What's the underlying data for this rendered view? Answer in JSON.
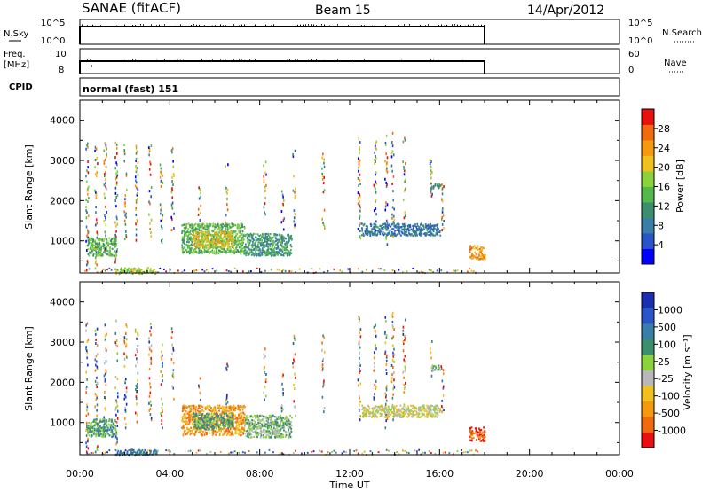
{
  "header": {
    "station": "SANAE (fitACF)",
    "beam": "Beam 15",
    "date": "14/Apr/2012"
  },
  "strip_noise": {
    "left_label": "N.Sky",
    "left_ticks": [
      "10^5",
      "10^0"
    ],
    "right_label": "N.Search",
    "right_ticks": [
      "10^5",
      "10^0"
    ]
  },
  "strip_freq": {
    "left_label_line1": "Freq.",
    "left_label_line2": "[MHz]",
    "left_ticks": [
      "10",
      "8"
    ],
    "right_label": "Nave",
    "right_ticks": [
      "60",
      "0"
    ]
  },
  "strip_cpid": {
    "label": "CPID",
    "value": "normal (fast) 151"
  },
  "time_axis": {
    "title": "Time UT",
    "ticks": [
      "00:00",
      "04:00",
      "08:00",
      "12:00",
      "16:00",
      "20:00",
      "00:00"
    ]
  },
  "colors": {
    "power": [
      "#0000ff",
      "#2a55c8",
      "#3a7ea8",
      "#3c8f6c",
      "#55b84c",
      "#8cd23c",
      "#f0c020",
      "#f59a10",
      "#f06a10",
      "#e81010"
    ],
    "velocity": [
      "#e81010",
      "#f06a10",
      "#f59a10",
      "#f0c020",
      "#b8b8b8",
      "#8cd23c",
      "#3c8f6c",
      "#3a7ea8",
      "#2a55c8",
      "#1a2fb0"
    ]
  },
  "chart_data": [
    {
      "type": "heatmap",
      "name": "power",
      "ylabel": "Slant Range [km]",
      "xlabel": "Time UT",
      "x_range": [
        0,
        24
      ],
      "y_range": [
        200,
        4500
      ],
      "y_ticks": [
        "4000",
        "3000",
        "2000",
        "1000"
      ],
      "colorbar_title": "Power [dB]",
      "colorbar_ticks": [
        "28",
        "24",
        "20",
        "16",
        "12",
        "8",
        "4"
      ],
      "colorbar_range": [
        0,
        32
      ],
      "scatter_lines": [
        {
          "t": 0.3,
          "r0": 300,
          "r1": 3500
        },
        {
          "t": 0.7,
          "r0": 300,
          "r1": 3400
        },
        {
          "t": 1.1,
          "r0": 800,
          "r1": 3500
        },
        {
          "t": 1.6,
          "r0": 500,
          "r1": 3600
        },
        {
          "t": 2.0,
          "r0": 900,
          "r1": 3500
        },
        {
          "t": 2.5,
          "r0": 1000,
          "r1": 3400
        },
        {
          "t": 3.1,
          "r0": 1100,
          "r1": 3500
        },
        {
          "t": 3.6,
          "r0": 900,
          "r1": 3000
        },
        {
          "t": 4.1,
          "r0": 1300,
          "r1": 3400
        },
        {
          "t": 5.3,
          "r0": 1500,
          "r1": 2400
        },
        {
          "t": 6.5,
          "r0": 1400,
          "r1": 3000
        },
        {
          "t": 8.2,
          "r0": 1600,
          "r1": 3100
        },
        {
          "t": 9.0,
          "r0": 1000,
          "r1": 2300
        },
        {
          "t": 9.5,
          "r0": 1200,
          "r1": 3300
        },
        {
          "t": 10.8,
          "r0": 1300,
          "r1": 3200
        },
        {
          "t": 12.4,
          "r0": 1100,
          "r1": 3700
        },
        {
          "t": 13.1,
          "r0": 1200,
          "r1": 3500
        },
        {
          "t": 13.6,
          "r0": 900,
          "r1": 3700
        },
        {
          "t": 13.9,
          "r0": 1100,
          "r1": 3800
        },
        {
          "t": 14.4,
          "r0": 1200,
          "r1": 3600
        },
        {
          "t": 15.6,
          "r0": 2100,
          "r1": 3100
        },
        {
          "t": 16.1,
          "r0": 1300,
          "r1": 2500
        }
      ],
      "blobs": [
        {
          "t0": 0.3,
          "t1": 1.6,
          "r0": 650,
          "r1": 1100,
          "level": 4
        },
        {
          "t0": 1.5,
          "t1": 3.4,
          "r0": 200,
          "r1": 350,
          "level": 5
        },
        {
          "t0": 4.5,
          "t1": 7.3,
          "r0": 700,
          "r1": 1450,
          "level": 4
        },
        {
          "t0": 5.0,
          "t1": 6.8,
          "r0": 850,
          "r1": 1250,
          "level": 6
        },
        {
          "t0": 7.3,
          "t1": 9.4,
          "r0": 650,
          "r1": 1200,
          "level": 3
        },
        {
          "t0": 12.5,
          "t1": 16.0,
          "r0": 1150,
          "r1": 1450,
          "level": 2
        },
        {
          "t0": 15.6,
          "t1": 16.0,
          "r0": 2300,
          "r1": 2450,
          "level": 3
        },
        {
          "t0": 17.3,
          "t1": 18.0,
          "r0": 550,
          "r1": 900,
          "level": 7
        }
      ]
    },
    {
      "type": "heatmap",
      "name": "velocity",
      "ylabel": "Slant Range [km]",
      "xlabel": "Time UT",
      "x_range": [
        0,
        24
      ],
      "y_range": [
        200,
        4500
      ],
      "y_ticks": [
        "4000",
        "3000",
        "2000",
        "1000"
      ],
      "colorbar_title": "Velocity [m s⁻¹]",
      "colorbar_ticks": [
        "1000",
        "500",
        "100",
        "25",
        "-25",
        "-100",
        "-500",
        "-1000"
      ],
      "scatter_lines": [
        {
          "t": 0.3,
          "r0": 300,
          "r1": 3500
        },
        {
          "t": 0.7,
          "r0": 300,
          "r1": 3400
        },
        {
          "t": 1.1,
          "r0": 800,
          "r1": 3500
        },
        {
          "t": 1.6,
          "r0": 500,
          "r1": 3600
        },
        {
          "t": 2.0,
          "r0": 900,
          "r1": 3500
        },
        {
          "t": 2.5,
          "r0": 1000,
          "r1": 3400
        },
        {
          "t": 3.1,
          "r0": 1100,
          "r1": 3500
        },
        {
          "t": 3.6,
          "r0": 900,
          "r1": 3000
        },
        {
          "t": 4.1,
          "r0": 1300,
          "r1": 3400
        },
        {
          "t": 5.3,
          "r0": 1500,
          "r1": 2400
        },
        {
          "t": 6.5,
          "r0": 1400,
          "r1": 3000
        },
        {
          "t": 8.2,
          "r0": 1600,
          "r1": 3100
        },
        {
          "t": 9.0,
          "r0": 1000,
          "r1": 2300
        },
        {
          "t": 9.5,
          "r0": 1200,
          "r1": 3300
        },
        {
          "t": 10.8,
          "r0": 1300,
          "r1": 3200
        },
        {
          "t": 12.4,
          "r0": 1100,
          "r1": 3700
        },
        {
          "t": 13.1,
          "r0": 1200,
          "r1": 3500
        },
        {
          "t": 13.6,
          "r0": 900,
          "r1": 3700
        },
        {
          "t": 13.9,
          "r0": 1100,
          "r1": 3800
        },
        {
          "t": 14.4,
          "r0": 1200,
          "r1": 3600
        },
        {
          "t": 15.6,
          "r0": 2100,
          "r1": 3100
        },
        {
          "t": 16.1,
          "r0": 1300,
          "r1": 2500
        }
      ],
      "blobs": [
        {
          "t0": 0.3,
          "t1": 1.6,
          "r0": 650,
          "r1": 1100,
          "level": 6
        },
        {
          "t0": 1.5,
          "t1": 3.4,
          "r0": 200,
          "r1": 350,
          "level": 7
        },
        {
          "t0": 4.5,
          "t1": 7.3,
          "r0": 700,
          "r1": 1450,
          "level": 2
        },
        {
          "t0": 5.0,
          "t1": 6.8,
          "r0": 850,
          "r1": 1250,
          "level": 6
        },
        {
          "t0": 7.3,
          "t1": 9.4,
          "r0": 650,
          "r1": 1200,
          "level": 5
        },
        {
          "t0": 12.5,
          "t1": 16.0,
          "r0": 1150,
          "r1": 1450,
          "level": 4
        },
        {
          "t0": 15.6,
          "t1": 16.0,
          "r0": 2300,
          "r1": 2450,
          "level": 5
        },
        {
          "t0": 17.3,
          "t1": 18.0,
          "r0": 550,
          "r1": 900,
          "level": 1
        }
      ]
    }
  ]
}
